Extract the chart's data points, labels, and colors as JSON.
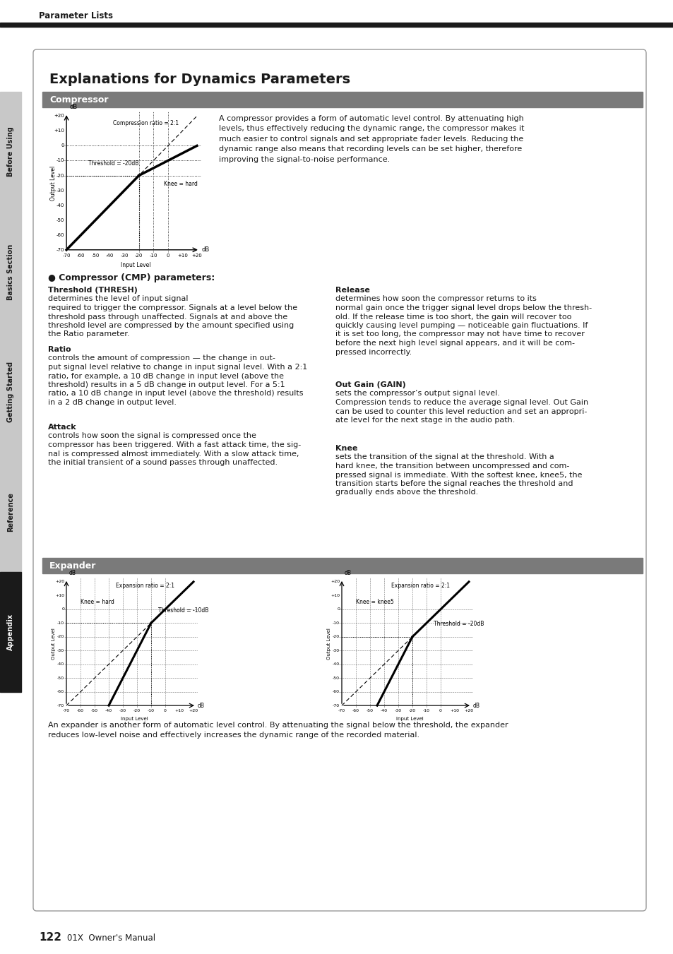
{
  "page_title": "Parameter Lists",
  "main_title": "Explanations for Dynamics Parameters",
  "section1_title": "Compressor",
  "section2_title": "Expander",
  "compressor_text": "A compressor provides a form of automatic level control. By attenuating high\nlevels, thus effectively reducing the dynamic range, the compressor makes it\nmuch easier to control signals and set appropriate fader levels. Reducing the\ndynamic range also means that recording levels can be set higher, therefore\nimproving the signal-to-noise performance.",
  "cmp_params_title": "Compressor (CMP) parameters:",
  "thresh_title": "Threshold (THRESH)",
  "thresh_text": " determines the level of input signal\nrequired to trigger the compressor. Signals at a level below the\nthreshold pass through unaffected. Signals at and above the\nthreshold level are compressed by the amount specified using\nthe Ratio parameter.",
  "ratio_title": "Ratio",
  "ratio_text": " controls the amount of compression — the change in out-\nput signal level relative to change in input signal level. With a 2:1\nratio, for example, a 10 dB change in input level (above the\nthreshold) results in a 5 dB change in output level. For a 5:1\nratio, a 10 dB change in input level (above the threshold) results\nin a 2 dB change in output level.",
  "attack_title": "Attack",
  "attack_text": " controls how soon the signal is compressed once the\ncompressor has been triggered. With a fast attack time, the sig-\nnal is compressed almost immediately. With a slow attack time,\nthe initial transient of a sound passes through unaffected.",
  "release_title": "Release",
  "release_text": " determines how soon the compressor returns to its\nnormal gain once the trigger signal level drops below the thresh-\nold. If the release time is too short, the gain will recover too\nquickly causing level pumping — noticeable gain fluctuations. If\nit is set too long, the compressor may not have time to recover\nbefore the next high level signal appears, and it will be com-\npressed incorrectly.",
  "outgain_title": "Out Gain (GAIN)",
  "outgain_text": " sets the compressor’s output signal level.\nCompression tends to reduce the average signal level. Out Gain\ncan be used to counter this level reduction and set an appropri-\nate level for the next stage in the audio path.",
  "knee_title": "Knee",
  "knee_text": " sets the transition of the signal at the threshold. With a\nhard knee, the transition between uncompressed and com-\npressed signal is immediate. With the softest knee, knee5, the\ntransition starts before the signal reaches the threshold and\ngradually ends above the threshold.",
  "expander_text": "An expander is another form of automatic level control. By attenuating the signal below the threshold, the expander\nreduces low-level noise and effectively increases the dynamic range of the recorded material.",
  "page_number": "122",
  "page_subtitle": "01X  Owner's Manual",
  "sidebar_labels": [
    "Before Using",
    "Basics Section",
    "Getting Started",
    "Reference",
    "Appendix"
  ],
  "sidebar_colors": [
    "#c8c8c8",
    "#c8c8c8",
    "#c8c8c8",
    "#c8c8c8",
    "#1a1a1a"
  ],
  "sidebar_text_colors": [
    "#1a1a1a",
    "#1a1a1a",
    "#1a1a1a",
    "#1a1a1a",
    "#ffffff"
  ],
  "bg_color": "#ffffff",
  "header_bar_color": "#2d2d2d",
  "section_bar_color": "#7a7a7a"
}
